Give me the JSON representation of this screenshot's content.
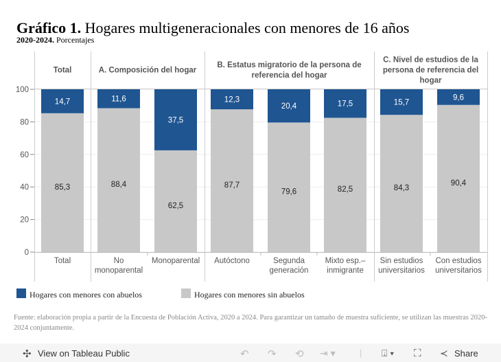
{
  "title": {
    "bold": "Gráfico 1.",
    "text": "Hogares multigeneracionales con menores de 16 años"
  },
  "subtitle": {
    "bold": "2020-2024.",
    "text": "Porcentajes"
  },
  "chart_data": {
    "type": "bar",
    "stacked": true,
    "ylim": [
      0,
      100
    ],
    "yticks": [
      0,
      20,
      40,
      60,
      80,
      100
    ],
    "grid": true,
    "panes": [
      {
        "label": "Total",
        "categories": [
          "Total"
        ]
      },
      {
        "label": "A. Composición del hogar",
        "categories": [
          "No monoparental",
          "Monoparental"
        ]
      },
      {
        "label": "B. Estatus migratorio de la persona de referencia del hogar",
        "categories": [
          "Autóctono",
          "Segunda generación",
          "Mixto esp.–inmigrante"
        ]
      },
      {
        "label": "C. Nivel de estudios de la persona de referencia del hogar",
        "categories": [
          "Sin estudios universitarios",
          "Con estudios universitarios"
        ]
      }
    ],
    "categories": [
      "Total",
      "No monoparental",
      "Monoparental",
      "Autóctono",
      "Segunda generación",
      "Mixto esp.–inmigrante",
      "Sin estudios universitarios",
      "Con estudios universitarios"
    ],
    "series": [
      {
        "name": "Hogares con menores sin abuelos",
        "color": "#c8c8c8",
        "values": [
          85.3,
          88.4,
          62.5,
          87.7,
          79.6,
          82.5,
          84.3,
          90.4
        ],
        "labels": [
          "85,3",
          "88,4",
          "62,5",
          "87,7",
          "79,6",
          "82,5",
          "84,3",
          "90,4"
        ]
      },
      {
        "name": "Hogares con menores con abuelos",
        "color": "#1f5591",
        "values": [
          14.7,
          11.6,
          37.5,
          12.3,
          20.4,
          17.5,
          15.7,
          9.6
        ],
        "labels": [
          "14,7",
          "11,6",
          "37,5",
          "12,3",
          "20,4",
          "17,5",
          "15,7",
          "9,6"
        ]
      }
    ],
    "legend": "bottom-left"
  },
  "legend": [
    {
      "label": "Hogares con menores con abuelos",
      "color": "#1f5591"
    },
    {
      "label": "Hogares con menores sin abuelos",
      "color": "#c8c8c8"
    }
  ],
  "source": "Fuente: elaboración propia a partir de la Encuesta de Población Activa, 2020 a 2024. Para garantizar un tamaño de muestra suficiente, se utilizan las muestras 2020-2024 conjuntamente.",
  "toolbar": {
    "view": "View on Tableau Public",
    "share": "Share"
  }
}
